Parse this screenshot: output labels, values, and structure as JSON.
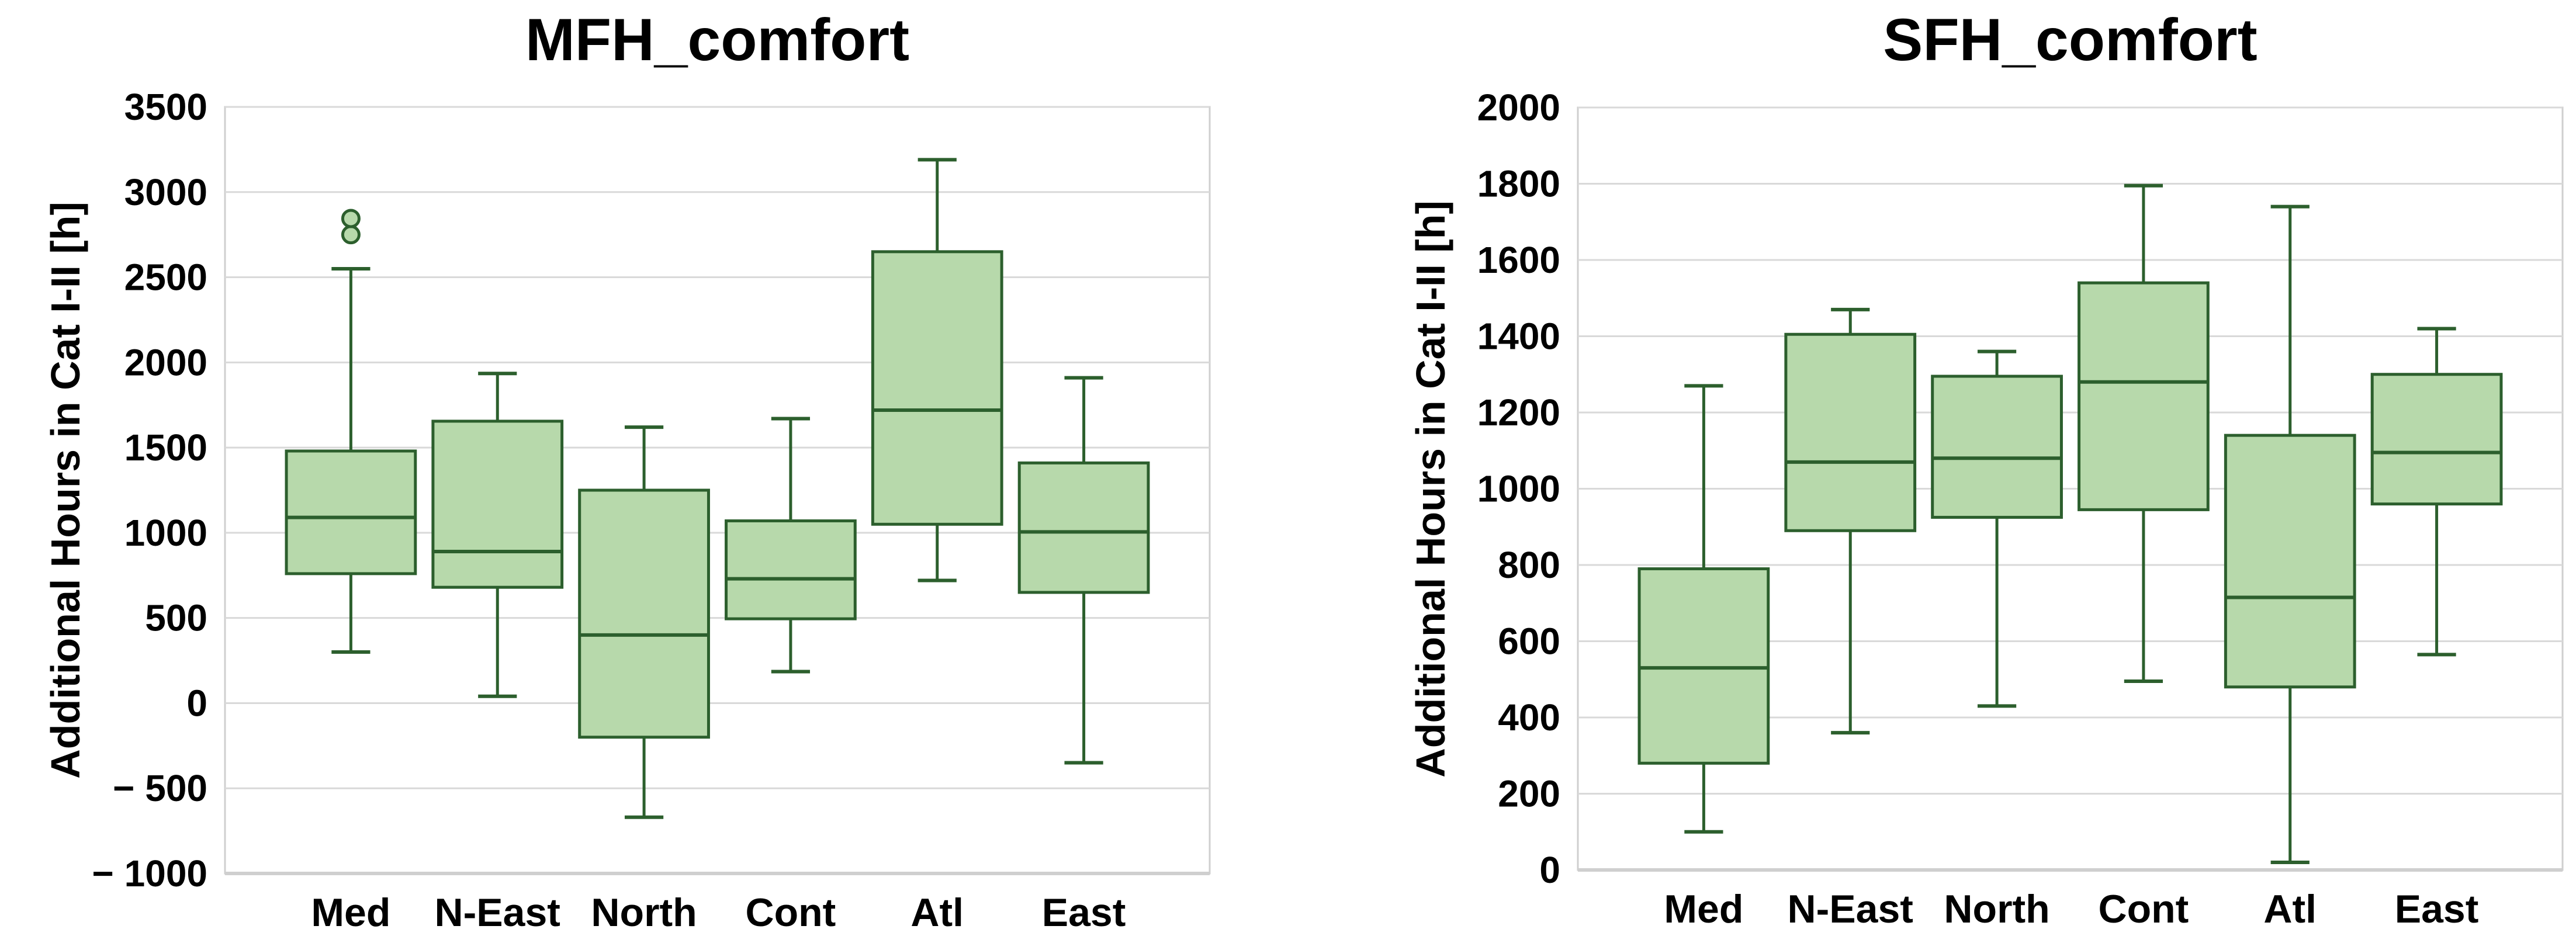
{
  "styles": {
    "background": "#ffffff",
    "box_fill": "#b7d9ab",
    "box_border": "#2c5f2d",
    "gridline": "#d9d9d9",
    "plot_border": "#cfcfcf",
    "text_color": "#000000"
  },
  "chart_data": [
    {
      "type": "box",
      "title": "MFH_comfort",
      "xlabel": "",
      "ylabel": "Additional Hours in Cat I-II [h]",
      "ylim": [
        -1000,
        3500
      ],
      "ystep": 500,
      "grid": true,
      "legend": "none",
      "y_ticks": [
        {
          "v": 3500,
          "label": "3500"
        },
        {
          "v": 3000,
          "label": "3000"
        },
        {
          "v": 2500,
          "label": "2500"
        },
        {
          "v": 2000,
          "label": "2000"
        },
        {
          "v": 1500,
          "label": "1500"
        },
        {
          "v": 1000,
          "label": "1000"
        },
        {
          "v": 500,
          "label": "500"
        },
        {
          "v": 0,
          "label": "0"
        },
        {
          "v": -500,
          "label": "− 500"
        },
        {
          "v": -1000,
          "label": "− 1000"
        }
      ],
      "categories": [
        "Med",
        "N-East",
        "North",
        "Cont",
        "Atl",
        "East"
      ],
      "boxes": [
        {
          "label": "Med",
          "low": 300,
          "q1": 760,
          "median": 1090,
          "q3": 1480,
          "high": 2550,
          "outliers": [
            2750,
            2845
          ]
        },
        {
          "label": "N-East",
          "low": 40,
          "q1": 680,
          "median": 890,
          "q3": 1655,
          "high": 1935,
          "outliers": []
        },
        {
          "label": "North",
          "low": -670,
          "q1": -200,
          "median": 400,
          "q3": 1250,
          "high": 1620,
          "outliers": []
        },
        {
          "label": "Cont",
          "low": 185,
          "q1": 495,
          "median": 730,
          "q3": 1070,
          "high": 1670,
          "outliers": []
        },
        {
          "label": "Atl",
          "low": 720,
          "q1": 1050,
          "median": 1720,
          "q3": 2650,
          "high": 3190,
          "outliers": []
        },
        {
          "label": "East",
          "low": -350,
          "q1": 650,
          "median": 1005,
          "q3": 1410,
          "high": 1910,
          "outliers": []
        }
      ]
    },
    {
      "type": "box",
      "title": "SFH_comfort",
      "xlabel": "",
      "ylabel": "Additional Hours in Cat I-II [h]",
      "ylim": [
        0,
        2000
      ],
      "ystep": 200,
      "grid": true,
      "legend": "none",
      "y_ticks": [
        {
          "v": 2000,
          "label": "2000"
        },
        {
          "v": 1800,
          "label": "1800"
        },
        {
          "v": 1600,
          "label": "1600"
        },
        {
          "v": 1400,
          "label": "1400"
        },
        {
          "v": 1200,
          "label": "1200"
        },
        {
          "v": 1000,
          "label": "1000"
        },
        {
          "v": 800,
          "label": "800"
        },
        {
          "v": 600,
          "label": "600"
        },
        {
          "v": 400,
          "label": "400"
        },
        {
          "v": 200,
          "label": "200"
        },
        {
          "v": 0,
          "label": "0"
        }
      ],
      "categories": [
        "Med",
        "N-East",
        "North",
        "Cont",
        "Atl",
        "East"
      ],
      "boxes": [
        {
          "label": "Med",
          "low": 100,
          "q1": 280,
          "median": 530,
          "q3": 790,
          "high": 1270,
          "outliers": []
        },
        {
          "label": "N-East",
          "low": 360,
          "q1": 890,
          "median": 1070,
          "q3": 1405,
          "high": 1470,
          "outliers": []
        },
        {
          "label": "North",
          "low": 430,
          "q1": 925,
          "median": 1080,
          "q3": 1295,
          "high": 1360,
          "outliers": []
        },
        {
          "label": "Cont",
          "low": 495,
          "q1": 945,
          "median": 1280,
          "q3": 1540,
          "high": 1795,
          "outliers": []
        },
        {
          "label": "Atl",
          "low": 20,
          "q1": 480,
          "median": 715,
          "q3": 1140,
          "high": 1740,
          "outliers": []
        },
        {
          "label": "East",
          "low": 565,
          "q1": 960,
          "median": 1095,
          "q3": 1300,
          "high": 1420,
          "outliers": []
        }
      ]
    }
  ]
}
